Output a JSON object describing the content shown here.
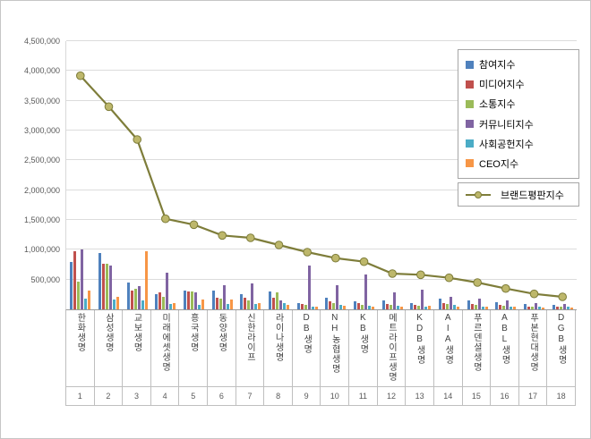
{
  "chart_data": {
    "type": "bar",
    "subtype": "grouped-bar-with-line-overlay",
    "title": "",
    "grid": true,
    "legend_position": "top-right",
    "categories": [
      "한화생명",
      "삼성생명",
      "교보생명",
      "미래에셋생명",
      "흥국생명",
      "동양생명",
      "신한라이프",
      "라이나생명",
      "DB생명",
      "NH농협생명",
      "KB생명",
      "메트라이프생명",
      "KDB생명",
      "AIA생명",
      "푸르덴셜생명",
      "ABL생명",
      "푸본현대생명",
      "DGB생명"
    ],
    "category_ranks": [
      "1",
      "2",
      "3",
      "4",
      "5",
      "6",
      "7",
      "8",
      "9",
      "10",
      "11",
      "12",
      "13",
      "14",
      "15",
      "16",
      "17",
      "18"
    ],
    "series": [
      {
        "name": "참여지수",
        "color": "#4F81BD",
        "values": [
          800000,
          950000,
          450000,
          260000,
          310000,
          320000,
          260000,
          300000,
          110000,
          200000,
          140000,
          150000,
          110000,
          180000,
          150000,
          120000,
          90000,
          80000
        ]
      },
      {
        "name": "미디어지수",
        "color": "#C0504D",
        "values": [
          970000,
          760000,
          310000,
          290000,
          300000,
          200000,
          190000,
          200000,
          90000,
          140000,
          100000,
          90000,
          80000,
          100000,
          90000,
          70000,
          50000,
          50000
        ]
      },
      {
        "name": "소통지수",
        "color": "#9BBB59",
        "values": [
          470000,
          770000,
          340000,
          210000,
          300000,
          180000,
          150000,
          280000,
          70000,
          110000,
          80000,
          70000,
          60000,
          90000,
          70000,
          60000,
          40000,
          40000
        ]
      },
      {
        "name": "커뮤니티지수",
        "color": "#8064A2",
        "values": [
          1000000,
          730000,
          390000,
          620000,
          280000,
          400000,
          430000,
          150000,
          740000,
          400000,
          590000,
          280000,
          330000,
          210000,
          180000,
          150000,
          110000,
          90000
        ]
      },
      {
        "name": "사회공헌지수",
        "color": "#4BACC6",
        "values": [
          180000,
          160000,
          150000,
          90000,
          70000,
          90000,
          90000,
          110000,
          50000,
          70000,
          60000,
          60000,
          50000,
          70000,
          50000,
          50000,
          40000,
          40000
        ]
      },
      {
        "name": "CEO지수",
        "color": "#F79646",
        "values": [
          310000,
          210000,
          970000,
          110000,
          160000,
          160000,
          110000,
          70000,
          40000,
          60000,
          50000,
          50000,
          60000,
          50000,
          40000,
          40000,
          30000,
          30000
        ]
      }
    ],
    "line_series": {
      "name": "브랜드평판지수",
      "color": "#7E7D3A",
      "marker_fill": "#BDB76B",
      "values": [
        3920000,
        3400000,
        2850000,
        1520000,
        1420000,
        1240000,
        1200000,
        1080000,
        960000,
        860000,
        800000,
        600000,
        580000,
        530000,
        450000,
        350000,
        260000,
        210000
      ]
    },
    "y_axis": {
      "min": 0,
      "max": 4500000,
      "tick_interval": 500000,
      "tick_labels": [
        "500,000",
        "1,000,000",
        "1,500,000",
        "2,000,000",
        "2,500,000",
        "3,000,000",
        "3,500,000",
        "4,000,000",
        "4,500,000"
      ]
    }
  }
}
